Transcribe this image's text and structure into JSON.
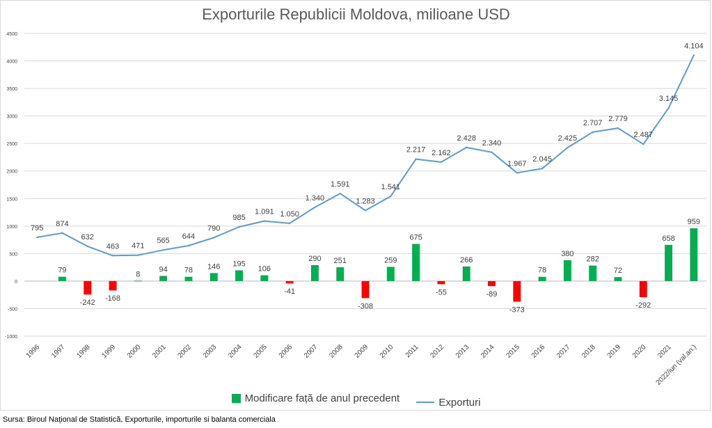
{
  "chart_data": {
    "type": "bar+line",
    "title": "Exporturile Republicii Moldova, milioane USD",
    "categories": [
      "1996",
      "1997",
      "1998",
      "1999",
      "2000",
      "2001",
      "2002",
      "2003",
      "2004",
      "2005",
      "2006",
      "2007",
      "2008",
      "2009",
      "2010",
      "2011",
      "2012",
      "2013",
      "2014",
      "2015",
      "2016",
      "2017",
      "2018",
      "2019",
      "2020",
      "2021",
      "2022/iun (val.an.)"
    ],
    "series": [
      {
        "name": "Modificare față de anul precedent",
        "kind": "bar",
        "values": [
          null,
          79,
          -242,
          -168,
          8,
          94,
          78,
          146,
          195,
          106,
          -41,
          290,
          251,
          -308,
          259,
          675,
          -55,
          266,
          -89,
          -373,
          78,
          380,
          282,
          72,
          -292,
          658,
          959
        ],
        "labels": [
          "",
          "79",
          "-242",
          "-168",
          "8",
          "94",
          "78",
          "146",
          "195",
          "106",
          "-41",
          "290",
          "251",
          "-308",
          "259",
          "675",
          "-55",
          "266",
          "-89",
          "-373",
          "78",
          "380",
          "282",
          "72",
          "-292",
          "658",
          "959"
        ]
      },
      {
        "name": "Exporturi",
        "kind": "line",
        "values": [
          795,
          874,
          632,
          463,
          471,
          565,
          644,
          790,
          985,
          1091,
          1050,
          1340,
          1591,
          1283,
          1541,
          2217,
          2162,
          2428,
          2340,
          1967,
          2045,
          2425,
          2707,
          2779,
          2487,
          3145,
          4104
        ],
        "labels": [
          "795",
          "874",
          "632",
          "463",
          "471",
          "565",
          "644",
          "790",
          "985",
          "1.091",
          "1.050",
          "1.340",
          "1.591",
          "1.283",
          "1.541",
          "2.217",
          "2.162",
          "2.428",
          "2.340",
          "1.967",
          "2.045",
          "2.425",
          "2.707",
          "2.779",
          "2.487",
          "3.145",
          "4.104"
        ]
      }
    ],
    "ylim": [
      -1000,
      4500
    ],
    "yticks": [
      -1000,
      -500,
      0,
      500,
      1000,
      1500,
      2000,
      2500,
      3000,
      3500,
      4000,
      4500
    ],
    "ytick_labels": [
      "-1000",
      "-500",
      "0",
      "500",
      "1000",
      "1500",
      "2000",
      "2500",
      "3000",
      "3500",
      "4000",
      "4500"
    ],
    "grid": true,
    "legend_position": "bottom",
    "colors": {
      "positive": "#00b050",
      "negative": "#ff0000",
      "line": "#5b9bd5",
      "grid": "#d9d9d9",
      "text": "#404040"
    }
  },
  "source_note": "Sursa: Biroul Național de Statistică, Exporturile, importurile si balanta comerciala"
}
